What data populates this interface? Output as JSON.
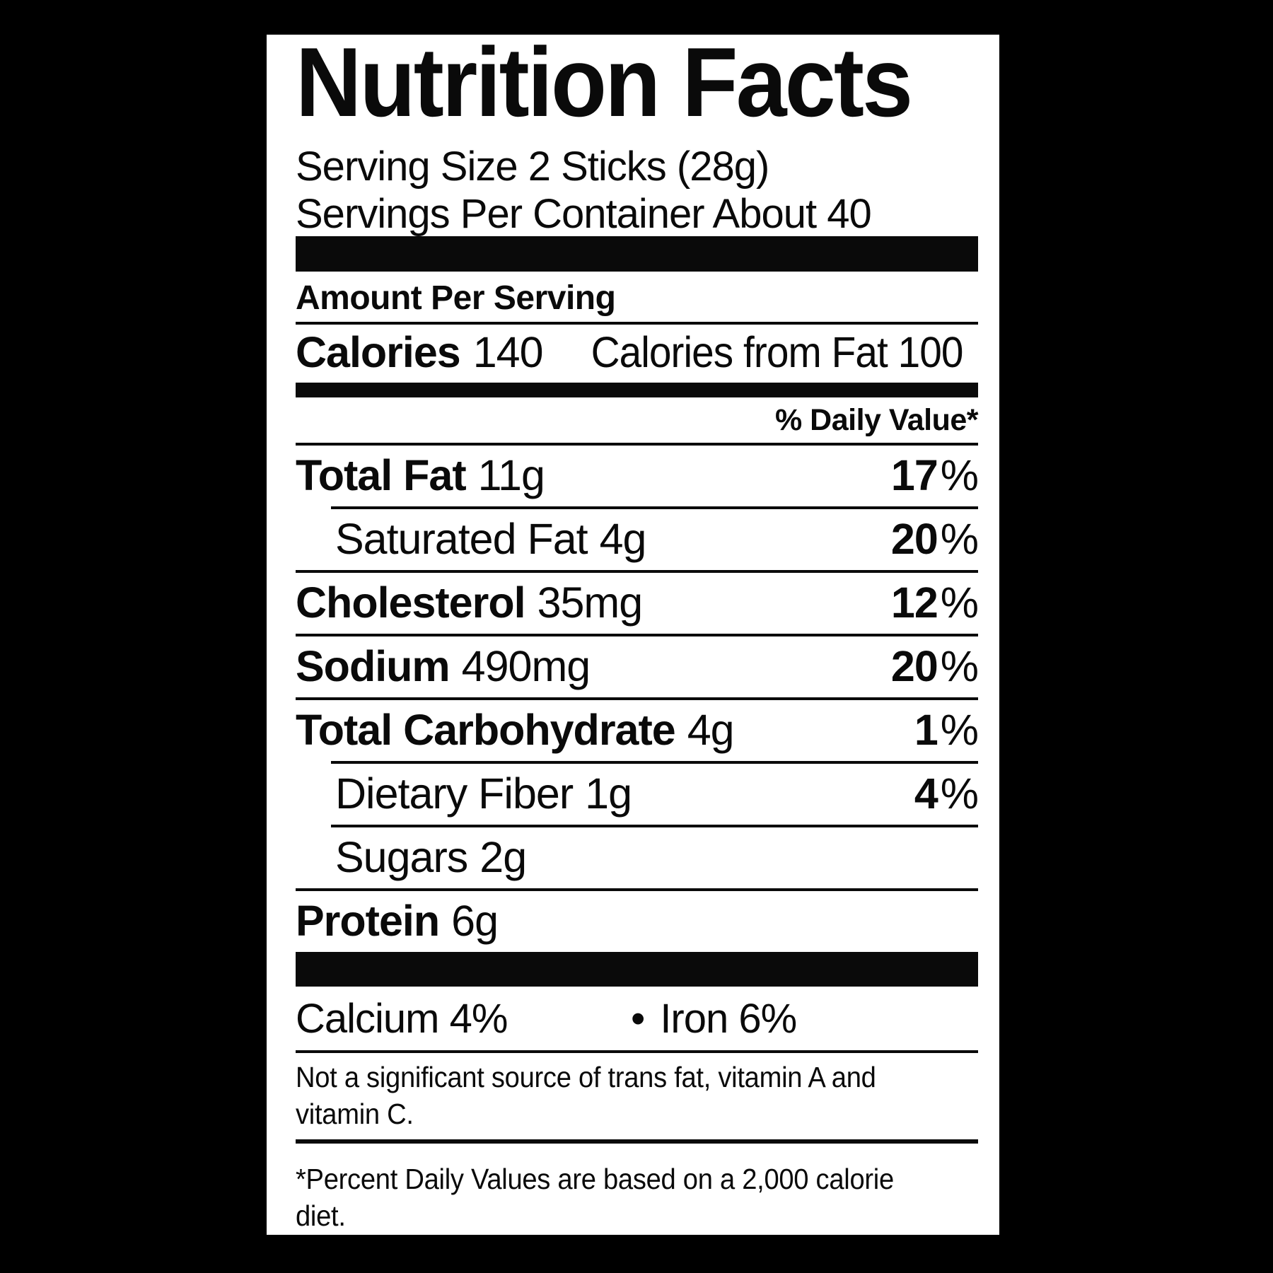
{
  "page": {
    "background": "#000000"
  },
  "label": {
    "bg": "#ffffff",
    "text_color": "#0a0a0a",
    "title": "Nutrition Facts",
    "serving": {
      "size_line": "Serving Size 2 Sticks (28g)",
      "per_container_line": "Servings Per Container About 40"
    },
    "amount_per_serving": "Amount Per Serving",
    "calories": {
      "label": "Calories",
      "value": "140",
      "from_fat": "Calories from Fat 100"
    },
    "daily_value_header": "% Daily Value*",
    "nutrients": [
      {
        "name": "Total Fat",
        "amount": "11g",
        "dv": "17",
        "unit": "%"
      },
      {
        "name": "Saturated Fat",
        "amount": "4g",
        "dv": "20",
        "unit": "%"
      },
      {
        "name": "Cholesterol",
        "amount": "35mg",
        "dv": "12",
        "unit": "%"
      },
      {
        "name": "Sodium",
        "amount": "490mg",
        "dv": "20",
        "unit": "%"
      },
      {
        "name": "Total Carbohydrate",
        "amount": "4g",
        "dv": "1",
        "unit": "%"
      },
      {
        "name": "Dietary Fiber",
        "amount": "1g",
        "dv": "4",
        "unit": "%"
      },
      {
        "name": "Sugars",
        "amount": "2g",
        "dv": "",
        "unit": ""
      },
      {
        "name": "Protein",
        "amount": "6g",
        "dv": "",
        "unit": ""
      }
    ],
    "minerals": {
      "calcium": "Calcium 4%",
      "bullet": "•",
      "iron": "Iron 6%"
    },
    "note_lines": [
      "Not a significant source of trans fat, vitamin A and",
      "vitamin C."
    ],
    "footnote_lines": [
      "*Percent Daily Values are based on a 2,000 calorie",
      "diet."
    ]
  }
}
